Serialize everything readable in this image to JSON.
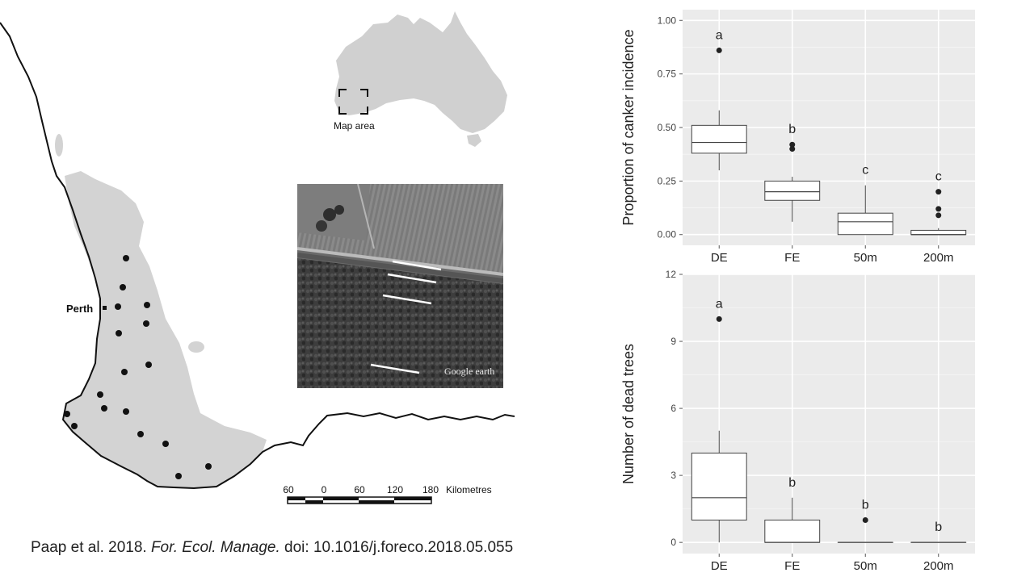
{
  "map": {
    "inset_label": "Map area",
    "city_label": "Perth",
    "scale": {
      "ticks": [
        "60",
        "0",
        "60",
        "120",
        "180"
      ],
      "unit": "Kilometres"
    }
  },
  "aerial": {
    "watermark": "Google earth"
  },
  "citation": {
    "authors": "Paap et al. 2018.",
    "journal": "For. Ecol. Manage.",
    "doi": "doi: 10.1016/j.foreco.2018.05.055"
  },
  "colors": {
    "land": "#d3d3d3",
    "panel": "#ebebeb",
    "grid": "#ffffff",
    "text": "#222222"
  },
  "chart_data": [
    {
      "type": "box",
      "categories": [
        "DE",
        "FE",
        "50m",
        "200m"
      ],
      "ylabel": "Proportion of canker incidence",
      "ylim": [
        -0.05,
        1.05
      ],
      "yticks": [
        "0.00",
        "0.25",
        "0.50",
        "0.75",
        "1.00"
      ],
      "yticks_values": [
        0,
        0.25,
        0.5,
        0.75,
        1.0
      ],
      "grid": true,
      "boxes": [
        {
          "category": "DE",
          "whisker_low": 0.3,
          "q1": 0.38,
          "median": 0.43,
          "q3": 0.51,
          "whisker_high": 0.58,
          "outliers": [
            0.86
          ],
          "letter": "a"
        },
        {
          "category": "FE",
          "whisker_low": 0.06,
          "q1": 0.16,
          "median": 0.2,
          "q3": 0.25,
          "whisker_high": 0.27,
          "outliers": [
            0.42,
            0.4
          ],
          "letter": "b"
        },
        {
          "category": "50m",
          "whisker_low": 0.0,
          "q1": 0.0,
          "median": 0.06,
          "q3": 0.1,
          "whisker_high": 0.23,
          "outliers": [],
          "letter": "c"
        },
        {
          "category": "200m",
          "whisker_low": 0.0,
          "q1": 0.0,
          "median": 0.0,
          "q3": 0.02,
          "whisker_high": 0.03,
          "outliers": [
            0.2,
            0.12,
            0.09
          ],
          "letter": "c"
        }
      ]
    },
    {
      "type": "box",
      "categories": [
        "DE",
        "FE",
        "50m",
        "200m"
      ],
      "ylabel": "Number of dead trees",
      "ylim": [
        -0.5,
        12
      ],
      "yticks": [
        "0",
        "3",
        "6",
        "9",
        "12"
      ],
      "yticks_values": [
        0,
        3,
        6,
        9,
        12
      ],
      "grid": true,
      "boxes": [
        {
          "category": "DE",
          "whisker_low": 0,
          "q1": 1,
          "median": 2,
          "q3": 4,
          "whisker_high": 5,
          "outliers": [
            10
          ],
          "letter": "a"
        },
        {
          "category": "FE",
          "whisker_low": 0,
          "q1": 0,
          "median": 0,
          "q3": 1,
          "whisker_high": 2,
          "outliers": [],
          "letter": "b"
        },
        {
          "category": "50m",
          "whisker_low": 0,
          "q1": 0,
          "median": 0,
          "q3": 0,
          "whisker_high": 0,
          "outliers": [
            1
          ],
          "letter": "b"
        },
        {
          "category": "200m",
          "whisker_low": 0,
          "q1": 0,
          "median": 0,
          "q3": 0,
          "whisker_high": 0,
          "outliers": [],
          "letter": "b"
        }
      ]
    }
  ]
}
